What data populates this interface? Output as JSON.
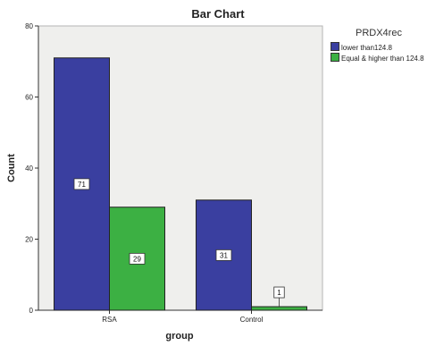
{
  "chart_data": {
    "type": "bar",
    "title": "Bar Chart",
    "xlabel": "group",
    "ylabel": "Count",
    "categories": [
      "RSA",
      "Control"
    ],
    "ylim": [
      0,
      80
    ],
    "yticks": [
      0,
      20,
      40,
      60,
      80
    ],
    "grid": false,
    "legend": {
      "title": "PRDX4rec",
      "placement": "top-right"
    },
    "series": [
      {
        "name": "lower than124.8",
        "values": [
          71,
          31
        ],
        "color": "#3a3fa0"
      },
      {
        "name": "Equal & higher than 124.8",
        "values": [
          29,
          1
        ],
        "color": "#3cb043"
      }
    ],
    "data_labels": true
  }
}
